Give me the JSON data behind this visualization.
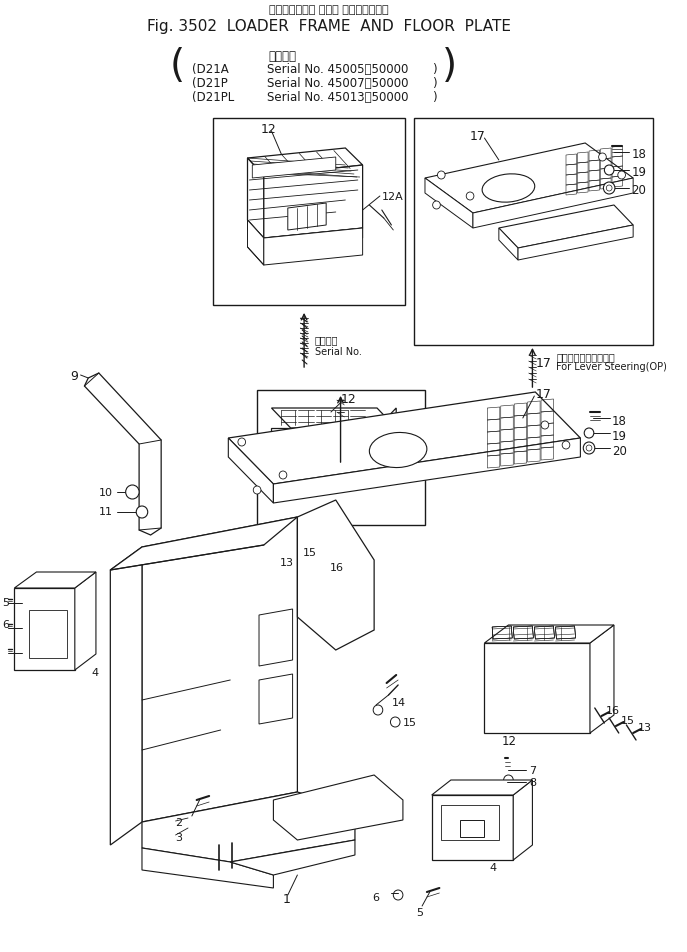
{
  "bg_color": "#ffffff",
  "line_color": "#1a1a1a",
  "title_japanese": "ローダフレーム および フロアプレート",
  "title_main": "Fig. 3502  LOADER  FRAME  AND  FLOOR  PLATE",
  "serial_label": "適用号機",
  "serial_lines": [
    [
      "D21A",
      "Serial No. 45005～50000"
    ],
    [
      "D21P",
      "Serial No. 45007～50000"
    ],
    [
      "D21PL",
      "Serial No. 45013～50000"
    ]
  ],
  "inset_arrow_text": "適用号機\nSerial No.",
  "lever_text_jp": "レバースチアリング用",
  "lever_text_en": "For Lever Steering(OP)"
}
